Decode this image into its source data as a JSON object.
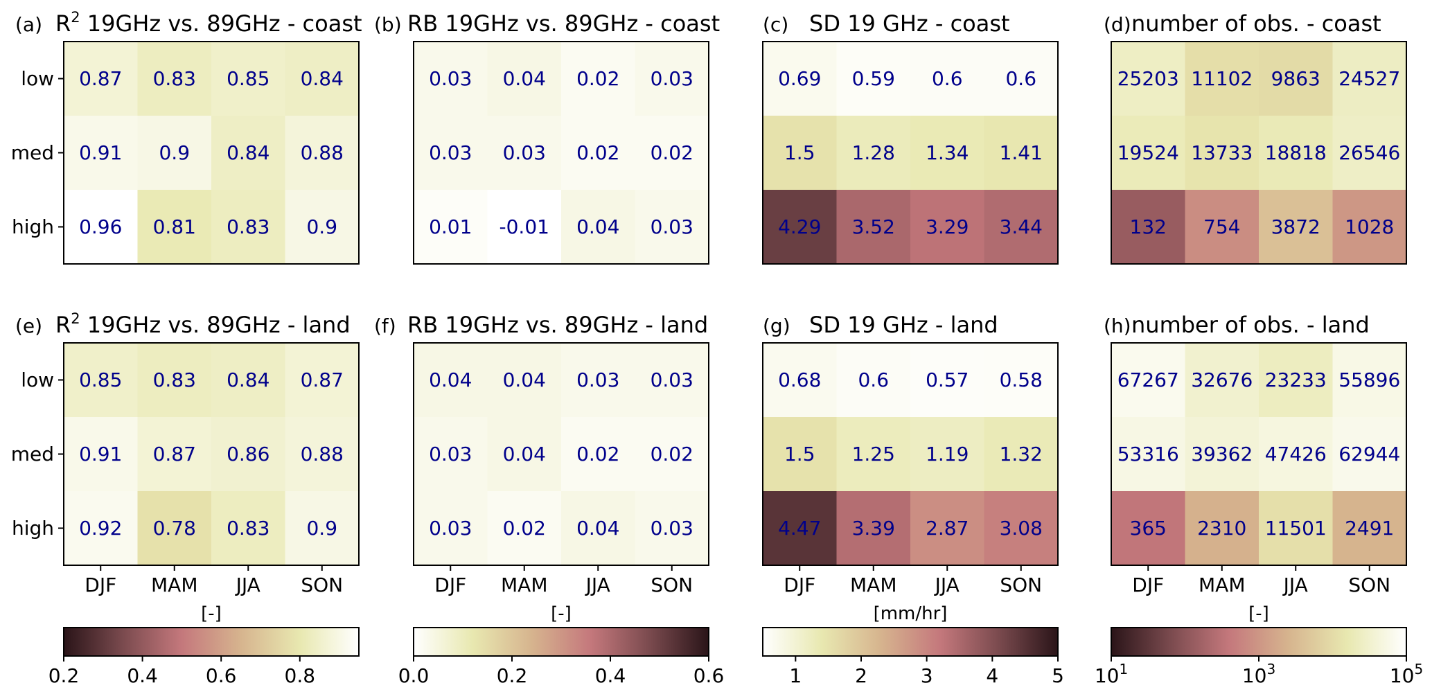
{
  "colormap": [
    "#2a1418",
    "#7a4a4e",
    "#c4787c",
    "#d6b48e",
    "#e8e8b0",
    "#ffffff"
  ],
  "chart_data": {
    "type": "heatmap",
    "rows": [
      "low",
      "med",
      "high"
    ],
    "columns": [
      "DJF",
      "MAM",
      "JJA",
      "SON"
    ],
    "panels": [
      {
        "label": "(a)",
        "title": "R² 19GHz vs. 89GHz - coast",
        "norm": "r2",
        "values": [
          [
            0.87,
            0.83,
            0.85,
            0.84
          ],
          [
            0.91,
            0.9,
            0.84,
            0.88
          ],
          [
            0.96,
            0.81,
            0.83,
            0.9
          ]
        ],
        "display": [
          [
            "0.87",
            "0.83",
            "0.85",
            "0.84"
          ],
          [
            "0.91",
            "0.9",
            "0.84",
            "0.88"
          ],
          [
            "0.96",
            "0.81",
            "0.83",
            "0.9"
          ]
        ]
      },
      {
        "label": "(b)",
        "title": "RB 19GHz vs. 89GHz - coast",
        "norm": "rb",
        "values": [
          [
            0.03,
            0.04,
            0.02,
            0.03
          ],
          [
            0.03,
            0.03,
            0.02,
            0.02
          ],
          [
            0.01,
            -0.01,
            0.04,
            0.03
          ]
        ],
        "display": [
          [
            "0.03",
            "0.04",
            "0.02",
            "0.03"
          ],
          [
            "0.03",
            "0.03",
            "0.02",
            "0.02"
          ],
          [
            "0.01",
            "-0.01",
            "0.04",
            "0.03"
          ]
        ]
      },
      {
        "label": "(c)",
        "title": "SD 19 GHz - coast",
        "norm": "sd",
        "values": [
          [
            0.69,
            0.59,
            0.6,
            0.6
          ],
          [
            1.5,
            1.28,
            1.34,
            1.41
          ],
          [
            4.29,
            3.52,
            3.29,
            3.44
          ]
        ],
        "display": [
          [
            "0.69",
            "0.59",
            "0.6",
            "0.6"
          ],
          [
            "1.5",
            "1.28",
            "1.34",
            "1.41"
          ],
          [
            "4.29",
            "3.52",
            "3.29",
            "3.44"
          ]
        ]
      },
      {
        "label": "(d)",
        "title": "number of obs. - coast",
        "norm": "obs",
        "values": [
          [
            25203,
            11102,
            9863,
            24527
          ],
          [
            19524,
            13733,
            18818,
            26546
          ],
          [
            132,
            754,
            3872,
            1028
          ]
        ],
        "display": [
          [
            "25203",
            "11102",
            "9863",
            "24527"
          ],
          [
            "19524",
            "13733",
            "18818",
            "26546"
          ],
          [
            "132",
            "754",
            "3872",
            "1028"
          ]
        ]
      },
      {
        "label": "(e)",
        "title": "R² 19GHz vs. 89GHz - land",
        "norm": "r2",
        "values": [
          [
            0.85,
            0.83,
            0.84,
            0.87
          ],
          [
            0.91,
            0.87,
            0.86,
            0.88
          ],
          [
            0.92,
            0.78,
            0.83,
            0.9
          ]
        ],
        "display": [
          [
            "0.85",
            "0.83",
            "0.84",
            "0.87"
          ],
          [
            "0.91",
            "0.87",
            "0.86",
            "0.88"
          ],
          [
            "0.92",
            "0.78",
            "0.83",
            "0.9"
          ]
        ]
      },
      {
        "label": "(f)",
        "title": "RB 19GHz vs. 89GHz - land",
        "norm": "rb",
        "values": [
          [
            0.04,
            0.04,
            0.03,
            0.03
          ],
          [
            0.03,
            0.04,
            0.02,
            0.02
          ],
          [
            0.03,
            0.02,
            0.04,
            0.03
          ]
        ],
        "display": [
          [
            "0.04",
            "0.04",
            "0.03",
            "0.03"
          ],
          [
            "0.03",
            "0.04",
            "0.02",
            "0.02"
          ],
          [
            "0.03",
            "0.02",
            "0.04",
            "0.03"
          ]
        ]
      },
      {
        "label": "(g)",
        "title": "SD 19 GHz - land",
        "norm": "sd",
        "values": [
          [
            0.68,
            0.6,
            0.57,
            0.58
          ],
          [
            1.5,
            1.25,
            1.19,
            1.32
          ],
          [
            4.47,
            3.39,
            2.87,
            3.08
          ]
        ],
        "display": [
          [
            "0.68",
            "0.6",
            "0.57",
            "0.58"
          ],
          [
            "1.5",
            "1.25",
            "1.19",
            "1.32"
          ],
          [
            "4.47",
            "3.39",
            "2.87",
            "3.08"
          ]
        ]
      },
      {
        "label": "(h)",
        "title": "number of obs. - land",
        "norm": "obs",
        "values": [
          [
            67267,
            32676,
            23233,
            55896
          ],
          [
            53316,
            39362,
            47426,
            62944
          ],
          [
            365,
            2310,
            11501,
            2491
          ]
        ],
        "display": [
          [
            "67267",
            "32676",
            "23233",
            "55896"
          ],
          [
            "53316",
            "39362",
            "47426",
            "62944"
          ],
          [
            "365",
            "2310",
            "11501",
            "2491"
          ]
        ]
      }
    ],
    "colorbars": [
      {
        "unit": "[-]",
        "range": [
          0.2,
          0.95
        ],
        "reversed": true,
        "scale": "linear",
        "ticks": [
          {
            "v": 0.2,
            "label": "0.2"
          },
          {
            "v": 0.4,
            "label": "0.4"
          },
          {
            "v": 0.6,
            "label": "0.6"
          },
          {
            "v": 0.8,
            "label": "0.8"
          }
        ]
      },
      {
        "unit": "[-]",
        "range": [
          0.0,
          0.6
        ],
        "reversed": false,
        "scale": "linear",
        "ticks": [
          {
            "v": 0.0,
            "label": "0.0"
          },
          {
            "v": 0.2,
            "label": "0.2"
          },
          {
            "v": 0.4,
            "label": "0.4"
          },
          {
            "v": 0.6,
            "label": "0.6"
          }
        ]
      },
      {
        "unit": "[mm/hr]",
        "range": [
          0.5,
          5
        ],
        "reversed": false,
        "scale": "linear",
        "ticks": [
          {
            "v": 1,
            "label": "1"
          },
          {
            "v": 2,
            "label": "2"
          },
          {
            "v": 3,
            "label": "3"
          },
          {
            "v": 4,
            "label": "4"
          },
          {
            "v": 5,
            "label": "5"
          }
        ]
      },
      {
        "unit": "[-]",
        "range": [
          10,
          100000
        ],
        "reversed": true,
        "scale": "log",
        "ticks": [
          {
            "v": 10,
            "label": "10",
            "exp": "1"
          },
          {
            "v": 1000,
            "label": "10",
            "exp": "3"
          },
          {
            "v": 100000,
            "label": "10",
            "exp": "5"
          }
        ]
      }
    ]
  }
}
